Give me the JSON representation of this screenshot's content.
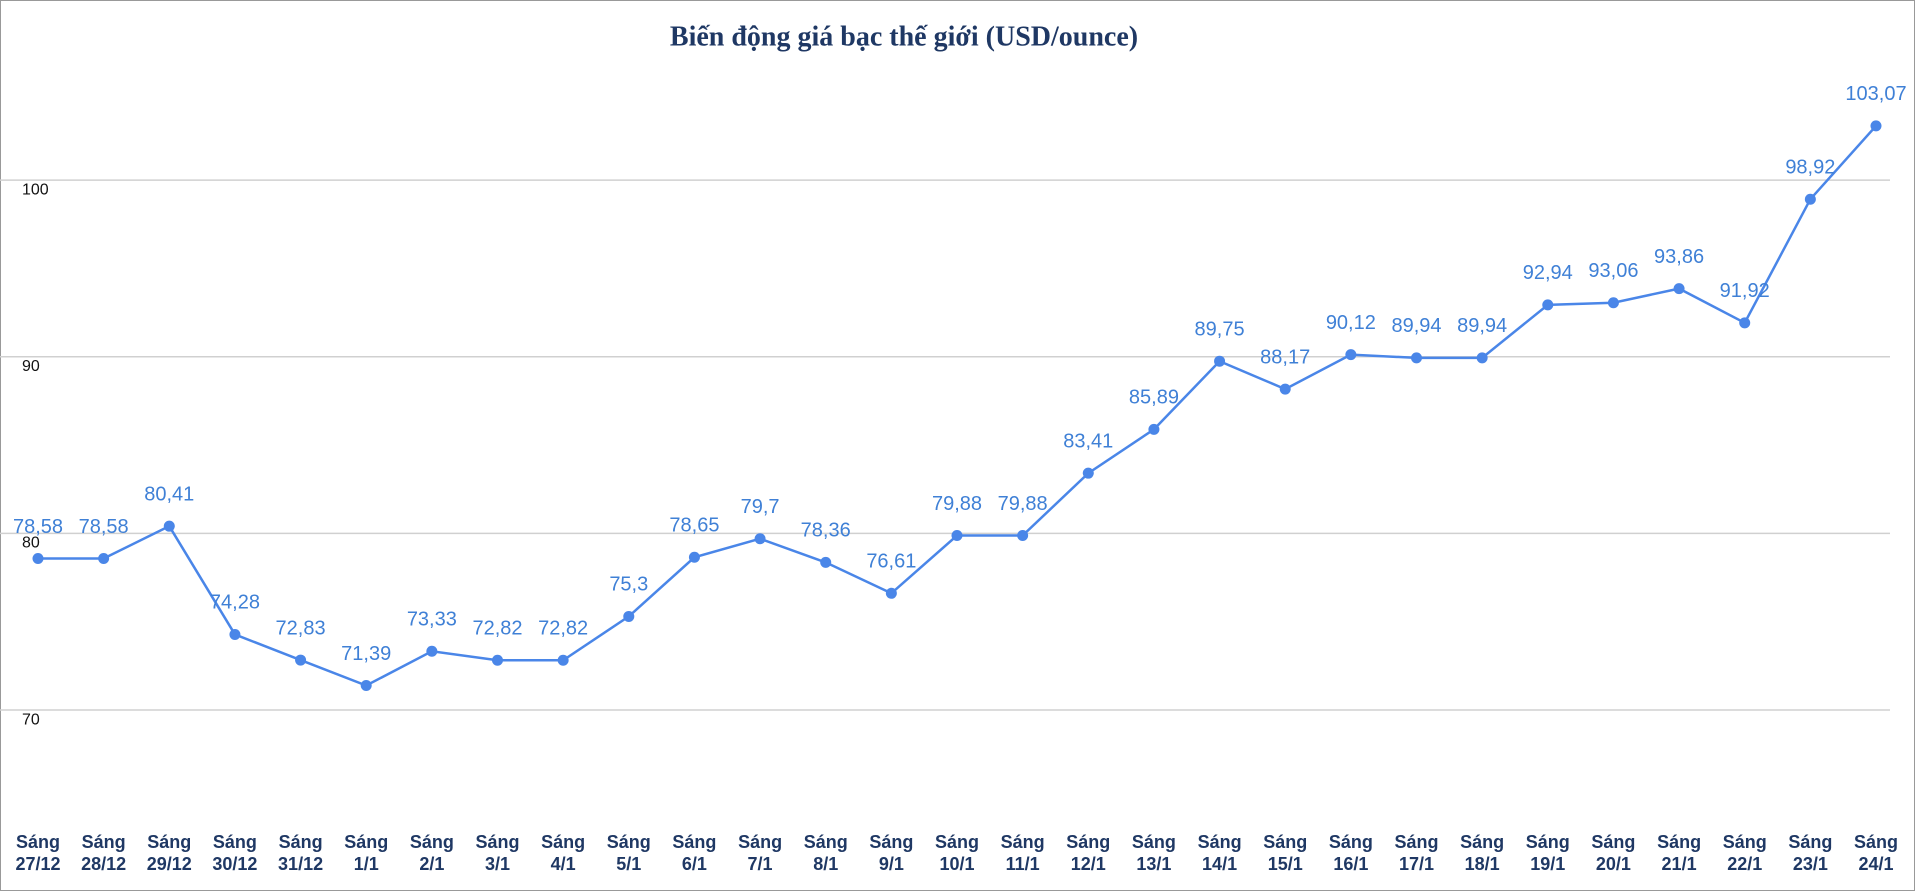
{
  "chart_data": {
    "type": "line",
    "title": "Biến động giá bạc thế giới (USD/ounce)",
    "categories": [
      [
        "Sáng",
        "27/12"
      ],
      [
        "Sáng",
        "28/12"
      ],
      [
        "Sáng",
        "29/12"
      ],
      [
        "Sáng",
        "30/12"
      ],
      [
        "Sáng",
        "31/12"
      ],
      [
        "Sáng",
        "1/1"
      ],
      [
        "Sáng",
        "2/1"
      ],
      [
        "Sáng",
        "3/1"
      ],
      [
        "Sáng",
        "4/1"
      ],
      [
        "Sáng",
        "5/1"
      ],
      [
        "Sáng",
        "6/1"
      ],
      [
        "Sáng",
        "7/1"
      ],
      [
        "Sáng",
        "8/1"
      ],
      [
        "Sáng",
        "9/1"
      ],
      [
        "Sáng",
        "10/1"
      ],
      [
        "Sáng",
        "11/1"
      ],
      [
        "Sáng",
        "12/1"
      ],
      [
        "Sáng",
        "13/1"
      ],
      [
        "Sáng",
        "14/1"
      ],
      [
        "Sáng",
        "15/1"
      ],
      [
        "Sáng",
        "16/1"
      ],
      [
        "Sáng",
        "17/1"
      ],
      [
        "Sáng",
        "18/1"
      ],
      [
        "Sáng",
        "19/1"
      ],
      [
        "Sáng",
        "20/1"
      ],
      [
        "Sáng",
        "21/1"
      ],
      [
        "Sáng",
        "22/1"
      ],
      [
        "Sáng",
        "23/1"
      ],
      [
        "Sáng",
        "24/1"
      ]
    ],
    "values": [
      78.58,
      78.58,
      80.41,
      74.28,
      72.83,
      71.39,
      73.33,
      72.82,
      72.82,
      75.3,
      78.65,
      79.7,
      78.36,
      76.61,
      79.88,
      79.88,
      83.41,
      85.89,
      89.75,
      88.17,
      90.12,
      89.94,
      89.94,
      92.94,
      93.06,
      93.86,
      91.92,
      98.92,
      103.07
    ],
    "value_labels": [
      "78,58",
      "78,58",
      "80,41",
      "74,28",
      "72,83",
      "71,39",
      "73,33",
      "72,82",
      "72,82",
      "75,3",
      "78,65",
      "79,7",
      "78,36",
      "76,61",
      "79,88",
      "79,88",
      "83,41",
      "85,89",
      "89,75",
      "88,17",
      "90,12",
      "89,94",
      "89,94",
      "92,94",
      "93,06",
      "93,86",
      "91,92",
      "98,92",
      "103,07"
    ],
    "color": "#4a86e8",
    "ylim": [
      60,
      110
    ],
    "yticks": [
      70,
      80,
      90,
      100
    ],
    "grid": true
  }
}
